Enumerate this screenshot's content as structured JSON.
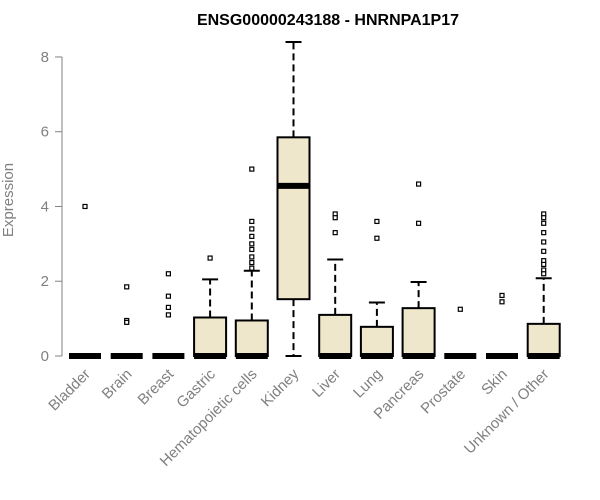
{
  "chart_data": {
    "type": "boxplot",
    "title": "ENSG00000243188 - HNRNPA1P17",
    "xlabel": "",
    "ylabel": "Expression",
    "ylim": [
      0,
      8.4
    ],
    "yticks": [
      0,
      2,
      4,
      6,
      8
    ],
    "box_fill": "#efe7cb",
    "categories": [
      "Bladder",
      "Brain",
      "Breast",
      "Gastric",
      "Hematopoietic cells",
      "Kidney",
      "Liver",
      "Lung",
      "Pancreas",
      "Prostate",
      "Skin",
      "Unknown / Other"
    ],
    "series": [
      {
        "q1": 0,
        "median": 0,
        "q3": 0,
        "whisker_low": 0,
        "whisker_high": 0,
        "outliers": [
          4.0
        ]
      },
      {
        "q1": 0,
        "median": 0,
        "q3": 0,
        "whisker_low": 0,
        "whisker_high": 0,
        "outliers": [
          1.85,
          0.95,
          0.9
        ]
      },
      {
        "q1": 0,
        "median": 0,
        "q3": 0,
        "whisker_low": 0,
        "whisker_high": 0,
        "outliers": [
          2.2,
          1.6,
          1.3,
          1.1
        ]
      },
      {
        "q1": 0,
        "median": 0,
        "q3": 1.03,
        "whisker_low": 0,
        "whisker_high": 2.05,
        "outliers": [
          2.62
        ]
      },
      {
        "q1": 0,
        "median": 0,
        "q3": 0.95,
        "whisker_low": 0,
        "whisker_high": 2.28,
        "outliers": [
          5.0,
          3.6,
          3.4,
          3.2,
          3.0,
          2.85,
          2.65,
          2.5,
          2.35
        ]
      },
      {
        "q1": 1.52,
        "median": 4.55,
        "q3": 5.85,
        "whisker_low": 0,
        "whisker_high": 8.4,
        "outliers": []
      },
      {
        "q1": 0,
        "median": 0,
        "q3": 1.1,
        "whisker_low": 0,
        "whisker_high": 2.58,
        "outliers": [
          3.8,
          3.7,
          3.3
        ]
      },
      {
        "q1": 0,
        "median": 0,
        "q3": 0.78,
        "whisker_low": 0,
        "whisker_high": 1.43,
        "outliers": [
          3.6,
          3.15
        ]
      },
      {
        "q1": 0,
        "median": 0,
        "q3": 1.28,
        "whisker_low": 0,
        "whisker_high": 1.98,
        "outliers": [
          4.6,
          3.55
        ]
      },
      {
        "q1": 0,
        "median": 0,
        "q3": 0,
        "whisker_low": 0,
        "whisker_high": 0,
        "outliers": [
          1.25
        ]
      },
      {
        "q1": 0,
        "median": 0,
        "q3": 0,
        "whisker_low": 0,
        "whisker_high": 0,
        "outliers": [
          1.62,
          1.45
        ]
      },
      {
        "q1": 0,
        "median": 0,
        "q3": 0.86,
        "whisker_low": 0,
        "whisker_high": 2.08,
        "outliers": [
          3.8,
          3.7,
          3.55,
          3.3,
          3.05,
          2.8,
          2.55,
          2.45,
          2.3,
          2.2
        ]
      }
    ]
  }
}
